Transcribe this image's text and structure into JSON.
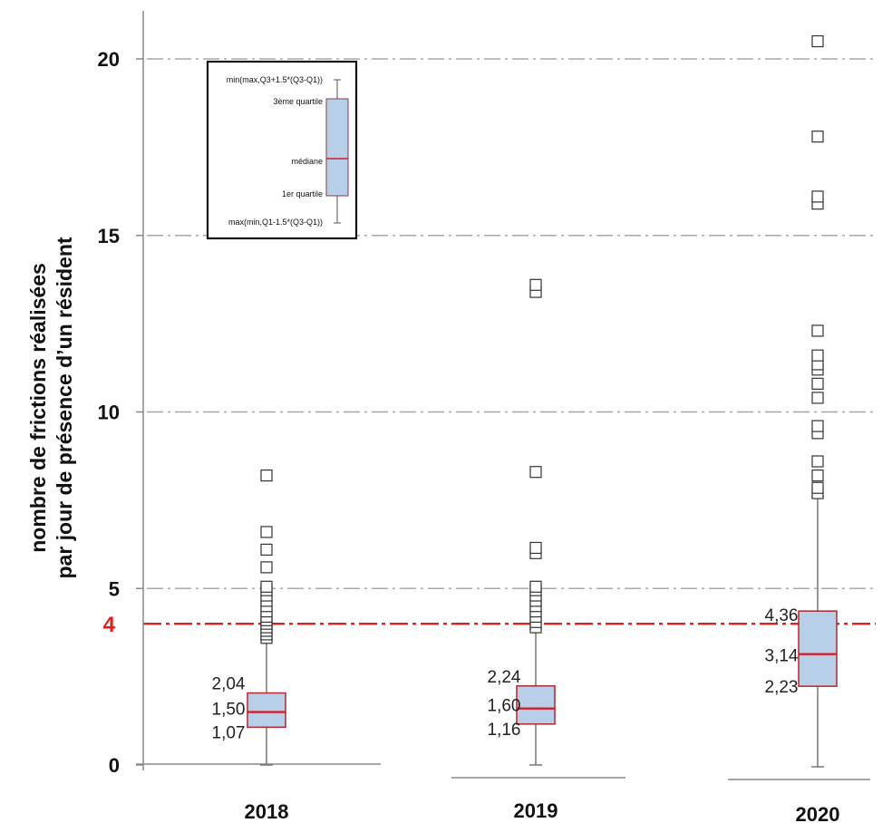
{
  "chart_data": {
    "type": "box",
    "ylabel_lines": [
      "nombre  de frictions réalisées",
      "par jour de présence d’un résident"
    ],
    "ylim": [
      0,
      20
    ],
    "yticks": [
      0,
      5,
      10,
      15,
      20
    ],
    "grid": "horizontal dash-dot",
    "reference_line": {
      "value": 4,
      "label": "4",
      "color": "#e0201c"
    },
    "categories": [
      "2018",
      "2019",
      "2020"
    ],
    "boxes": [
      {
        "category": "2018",
        "whisker_low": 0,
        "q1": 1.07,
        "median": 1.5,
        "q3": 2.04,
        "whisker_high": 3.55,
        "labels": {
          "q3": "2,04",
          "median": "1,50",
          "q1": "1,07"
        },
        "outliers": [
          3.6,
          3.7,
          3.8,
          3.9,
          4.0,
          4.1,
          4.2,
          4.35,
          4.5,
          4.65,
          4.8,
          4.95,
          5.05,
          5.6,
          6.1,
          6.6,
          8.2
        ]
      },
      {
        "category": "2019",
        "whisker_low": 0,
        "q1": 1.16,
        "median": 1.6,
        "q3": 2.24,
        "whisker_high": 3.85,
        "labels": {
          "q3": "2,24",
          "median": "1,60",
          "q1": "1,16"
        },
        "outliers": [
          3.9,
          4.05,
          4.2,
          4.35,
          4.5,
          4.65,
          4.8,
          4.95,
          5.05,
          6.0,
          6.15,
          8.3,
          13.4,
          13.6
        ]
      },
      {
        "category": "2020",
        "whisker_low": -0.05,
        "q1": 2.23,
        "median": 3.14,
        "q3": 4.36,
        "whisker_high": 7.6,
        "labels": {
          "q3": "4,36",
          "median": "3,14",
          "q1": "2,23"
        },
        "outliers": [
          7.7,
          7.85,
          8.2,
          8.6,
          9.4,
          9.6,
          10.4,
          10.8,
          11.2,
          11.35,
          11.6,
          12.3,
          15.9,
          16.1,
          17.8,
          20.5
        ]
      }
    ],
    "legend_box": {
      "labels": [
        "min(max,Q3+1.5*(Q3-Q1))",
        "3ème quartile",
        "médiane",
        "1er quartile",
        "max(min,Q1-1.5*(Q3-Q1))"
      ]
    },
    "colors": {
      "box_fill": "#b8cfe8",
      "box_stroke": "#b5303a",
      "median": "#d01f2e",
      "whisker": "#777777",
      "grid": "#a8a8a8",
      "outlier": "#333333"
    }
  }
}
